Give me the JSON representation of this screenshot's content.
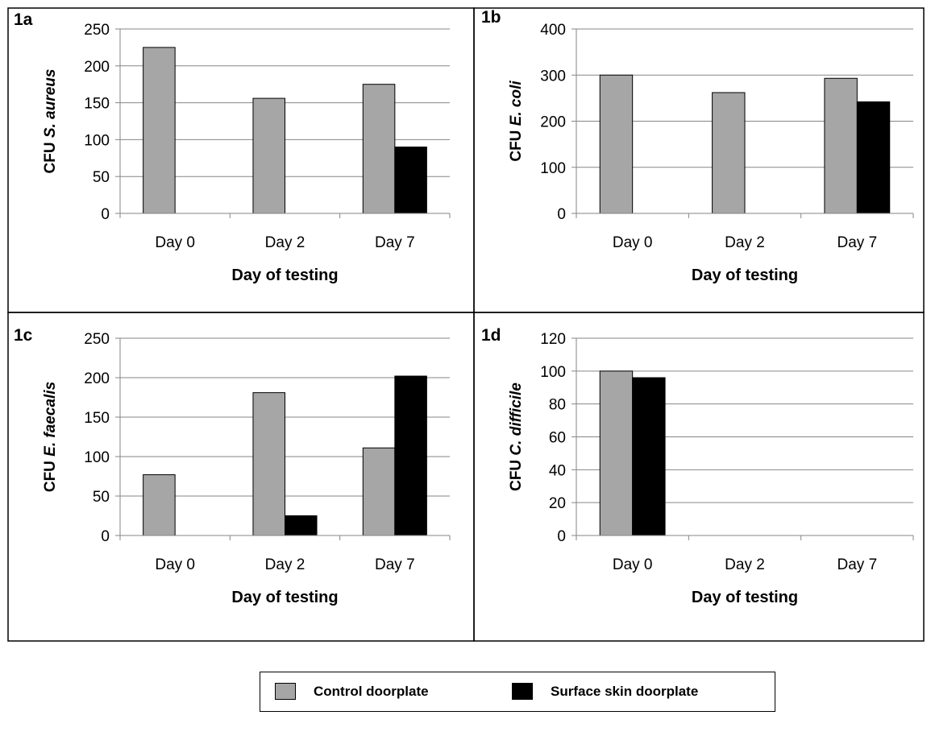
{
  "legend": {
    "items": [
      {
        "label": "Control doorplate",
        "color": "#a6a6a6"
      },
      {
        "label": "Surface skin doorplate",
        "color": "#000000"
      }
    ]
  },
  "chart_data": [
    {
      "type": "bar",
      "panel_label": "1a",
      "categories": [
        "Day 0",
        "Day 2",
        "Day 7"
      ],
      "series": [
        {
          "name": "Control doorplate",
          "values": [
            225,
            156,
            175
          ]
        },
        {
          "name": "Surface skin doorplate",
          "values": [
            0,
            0,
            90
          ]
        }
      ],
      "xlabel": "Day of testing",
      "ylabel_prefix": "CFU ",
      "ylabel_organism": "S. aureus",
      "ylim": [
        0,
        250
      ],
      "yticks": [
        0,
        50,
        100,
        150,
        200,
        250
      ],
      "grid": true
    },
    {
      "type": "bar",
      "panel_label": "1b",
      "categories": [
        "Day 0",
        "Day 2",
        "Day 7"
      ],
      "series": [
        {
          "name": "Control doorplate",
          "values": [
            300,
            262,
            293
          ]
        },
        {
          "name": "Surface skin doorplate",
          "values": [
            0,
            0,
            242
          ]
        }
      ],
      "xlabel": "Day of testing",
      "ylabel_prefix": "CFU ",
      "ylabel_organism": "E. coli",
      "ylim": [
        0,
        400
      ],
      "yticks": [
        0,
        100,
        200,
        300,
        400
      ],
      "grid": true
    },
    {
      "type": "bar",
      "panel_label": "1c",
      "categories": [
        "Day 0",
        "Day 2",
        "Day 7"
      ],
      "series": [
        {
          "name": "Control doorplate",
          "values": [
            77,
            181,
            111
          ]
        },
        {
          "name": "Surface skin doorplate",
          "values": [
            0,
            25,
            202
          ]
        }
      ],
      "xlabel": "Day of testing",
      "ylabel_prefix": "CFU ",
      "ylabel_organism": "E. faecalis",
      "ylim": [
        0,
        250
      ],
      "yticks": [
        0,
        50,
        100,
        150,
        200,
        250
      ],
      "grid": true
    },
    {
      "type": "bar",
      "panel_label": "1d",
      "categories": [
        "Day 0",
        "Day 2",
        "Day 7"
      ],
      "series": [
        {
          "name": "Control doorplate",
          "values": [
            100,
            0,
            0
          ]
        },
        {
          "name": "Surface skin doorplate",
          "values": [
            96,
            0,
            0
          ]
        }
      ],
      "xlabel": "Day of testing",
      "ylabel_prefix": "CFU ",
      "ylabel_organism": "C. difficile",
      "ylim": [
        0,
        120
      ],
      "yticks": [
        0,
        20,
        40,
        60,
        80,
        100,
        120
      ],
      "grid": true
    }
  ]
}
